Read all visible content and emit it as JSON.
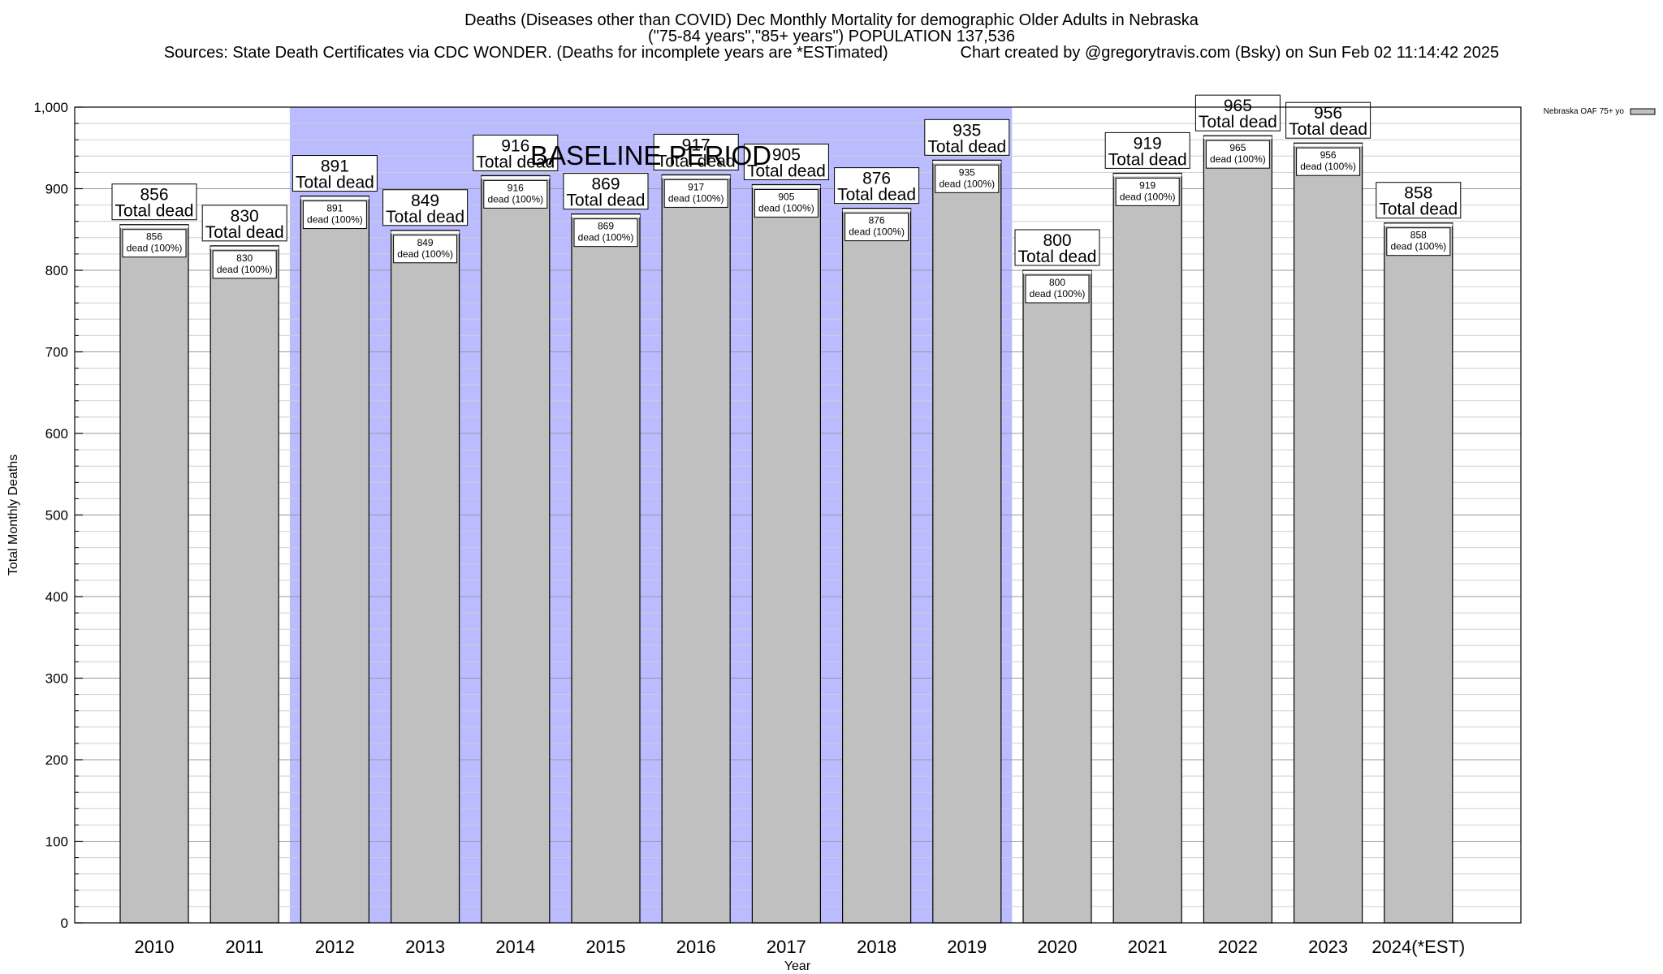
{
  "header": {
    "title_line1": "Deaths (Diseases other than COVID) Dec Monthly Mortality for demographic Older Adults in Nebraska",
    "title_line2": "(\"75-84 years\",\"85+ years\") POPULATION 137,536",
    "title_line3": "Sources: State Death Certificates via CDC WONDER. (Deaths for incomplete years are *ESTimated)                Chart created by @gregorytravis.com (Bsky) on Sun Feb 02 11:14:42 2025"
  },
  "colors": {
    "bar_fill": "#c0c0c0",
    "baseline_fill": "#bbbbff",
    "grid": "#cfcfcf"
  },
  "chart_data": {
    "type": "bar",
    "title": "Deaths (Diseases other than COVID) Dec Monthly Mortality for demographic Older Adults in Nebraska",
    "xlabel": "Year",
    "ylabel": "Total Monthly Deaths",
    "ylim": [
      0,
      1000
    ],
    "yticks": [
      "0",
      "100",
      "200",
      "300",
      "400",
      "500",
      "600",
      "700",
      "800",
      "900",
      "1,000"
    ],
    "grid": true,
    "legend_position": "top-right",
    "categories": [
      "2010",
      "2011",
      "2012",
      "2013",
      "2014",
      "2015",
      "2016",
      "2017",
      "2018",
      "2019",
      "2020",
      "2021",
      "2022",
      "2023",
      "2024(*EST)"
    ],
    "series": [
      {
        "name": "Nebraska OAF 75+ yo",
        "values": [
          856,
          830,
          891,
          849,
          916,
          869,
          917,
          905,
          876,
          935,
          800,
          919,
          965,
          956,
          858
        ]
      }
    ],
    "bar_labels_total": [
      "856\nTotal dead",
      "830\nTotal dead",
      "891\nTotal dead",
      "849\nTotal dead",
      "916\nTotal dead",
      "869\nTotal dead",
      "917\nTotal dead",
      "905\nTotal dead",
      "876\nTotal dead",
      "935\nTotal dead",
      "800\nTotal dead",
      "919\nTotal dead",
      "965\nTotal dead",
      "956\nTotal dead",
      "858\nTotal dead"
    ],
    "bar_labels_inner": [
      "856\ndead (100%)",
      "830\ndead (100%)",
      "891\ndead (100%)",
      "849\ndead (100%)",
      "916\ndead (100%)",
      "869\ndead (100%)",
      "917\ndead (100%)",
      "905\ndead (100%)",
      "876\ndead (100%)",
      "935\ndead (100%)",
      "800\ndead (100%)",
      "919\ndead (100%)",
      "965\ndead (100%)",
      "956\ndead (100%)",
      "858\ndead (100%)"
    ],
    "baseline_period": {
      "label": "BASELINE PERIOD",
      "start": "2012",
      "end": "2019"
    }
  }
}
